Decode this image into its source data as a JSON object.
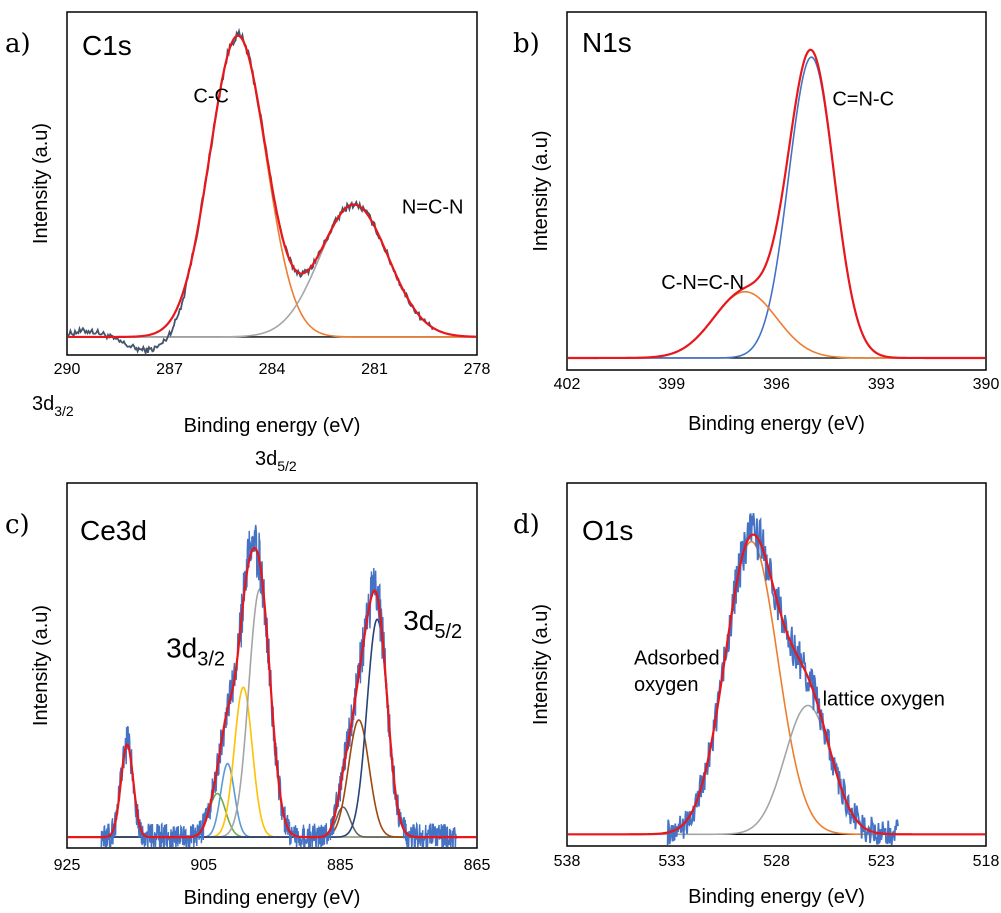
{
  "colors": {
    "envelope": "#e8171b",
    "raw": "#4472c4",
    "raw_c1s": "#44546a",
    "gray": "#a5a5a5",
    "orange": "#ed7d31",
    "blue": "#4472c4",
    "yellow": "#ffc000",
    "green": "#70ad47",
    "lightblue": "#5b9bd5",
    "navy": "#264478",
    "brown": "#9e480e",
    "darkgray": "#636363",
    "baseline": "#000000"
  },
  "stray_labels": {
    "a": "3d",
    "a_sub": "3/2",
    "b": "3d",
    "b_sub": "5/2"
  },
  "chart_data": [
    {
      "id": "a",
      "panel_label": "a)",
      "title": "C1s",
      "type": "line",
      "xlabel": "Binding energy (eV)",
      "ylabel": "Intensity (a.u)",
      "xlim": [
        290,
        278
      ],
      "xticks": [
        290,
        287,
        284,
        281,
        278
      ],
      "grid": false,
      "baseline": 0,
      "noise_amp": 0.01,
      "raw_range": [
        290,
        279.3
      ],
      "ylim": [
        -0.06,
        1.08
      ],
      "components": [
        {
          "name": "C-C",
          "center": 285.0,
          "height": 1.0,
          "sigma": 0.82,
          "color": "#ed7d31"
        },
        {
          "name": "N=C-N",
          "center": 281.6,
          "height": 0.44,
          "sigma": 1.0,
          "color": "#a5a5a5"
        }
      ],
      "annotations": [
        {
          "text": "C-C",
          "x": 286.3,
          "y": 0.78
        },
        {
          "text": "N=C-N",
          "x": 280.2,
          "y": 0.41
        }
      ]
    },
    {
      "id": "b",
      "panel_label": "b)",
      "title": "N1s",
      "type": "line",
      "xlabel": "Binding energy (eV)",
      "ylabel": "Intensity (a.u)",
      "xlim": [
        402,
        390
      ],
      "xticks": [
        402,
        399,
        396,
        393,
        390
      ],
      "grid": false,
      "baseline": 0,
      "noise_amp": 0,
      "raw_range": null,
      "ylim": [
        -0.04,
        1.15
      ],
      "components": [
        {
          "name": "C=N-C",
          "center": 395.0,
          "height": 1.0,
          "sigma": 0.65,
          "color": "#4472c4"
        },
        {
          "name": "C-N=C-N",
          "center": 396.9,
          "height": 0.22,
          "sigma": 0.9,
          "color": "#ed7d31"
        }
      ],
      "annotations": [
        {
          "text": "C=N-C",
          "x": 394.4,
          "y": 0.84
        },
        {
          "text": "C-N=C-N",
          "x": 399.3,
          "y": 0.23
        }
      ]
    },
    {
      "id": "c",
      "panel_label": "c)",
      "title": "Ce3d",
      "type": "line",
      "xlabel": "Binding energy (eV)",
      "ylabel": "Intensity (a.u)",
      "xlim": [
        925,
        865
      ],
      "xticks": [
        925,
        905,
        885,
        865
      ],
      "grid": false,
      "baseline": 0,
      "noise_amp": 0.05,
      "raw_range": [
        920,
        868
      ],
      "ylim": [
        -0.04,
        1.3
      ],
      "components": [
        {
          "name": "peak 916.2",
          "center": 916.2,
          "height": 0.34,
          "sigma": 0.9,
          "color": "#70ad47"
        },
        {
          "name": "peak 903.0",
          "center": 903.0,
          "height": 0.16,
          "sigma": 1.2,
          "color": "#70ad47"
        },
        {
          "name": "peak 901.5",
          "center": 901.5,
          "height": 0.27,
          "sigma": 1.0,
          "color": "#5b9bd5"
        },
        {
          "name": "peak 899.2",
          "center": 899.2,
          "height": 0.55,
          "sigma": 1.3,
          "color": "#ffc000"
        },
        {
          "name": "peak 896.8",
          "center": 896.8,
          "height": 0.91,
          "sigma": 1.6,
          "color": "#a5a5a5"
        },
        {
          "name": "peak 884.6",
          "center": 884.6,
          "height": 0.11,
          "sigma": 1.0,
          "color": "#636363"
        },
        {
          "name": "peak 882.3",
          "center": 882.3,
          "height": 0.43,
          "sigma": 1.5,
          "color": "#9e480e"
        },
        {
          "name": "peak 879.6",
          "center": 879.6,
          "height": 0.8,
          "sigma": 1.5,
          "color": "#264478"
        }
      ],
      "annotations": [
        {
          "text": "3d",
          "sub": "3/2",
          "x": 910.5,
          "y": 0.66
        },
        {
          "text": "3d",
          "sub": "5/2",
          "x": 875.8,
          "y": 0.76
        }
      ]
    },
    {
      "id": "d",
      "panel_label": "d)",
      "title": "O1s",
      "type": "line",
      "xlabel": "Binding energy (eV)",
      "ylabel": "Intensity (a.u)",
      "xlim": [
        538,
        518
      ],
      "xticks": [
        538,
        533,
        528,
        523,
        518
      ],
      "grid": false,
      "baseline": 0,
      "noise_amp": 0.05,
      "raw_range": [
        533.2,
        522.2
      ],
      "ylim": [
        -0.04,
        1.2
      ],
      "components": [
        {
          "name": "Adsorbed oxygen",
          "center": 529.2,
          "height": 1.0,
          "sigma": 1.25,
          "color": "#ed7d31"
        },
        {
          "name": "lattice oxygen",
          "center": 526.5,
          "height": 0.44,
          "sigma": 1.1,
          "color": "#a5a5a5"
        }
      ],
      "annotations": [
        {
          "text": "Adsorbed",
          "x": 534.8,
          "y": 0.58
        },
        {
          "text": "oxygen",
          "x": 534.8,
          "y": 0.49
        },
        {
          "text": "lattice oxygen",
          "x": 525.8,
          "y": 0.44
        }
      ]
    }
  ]
}
